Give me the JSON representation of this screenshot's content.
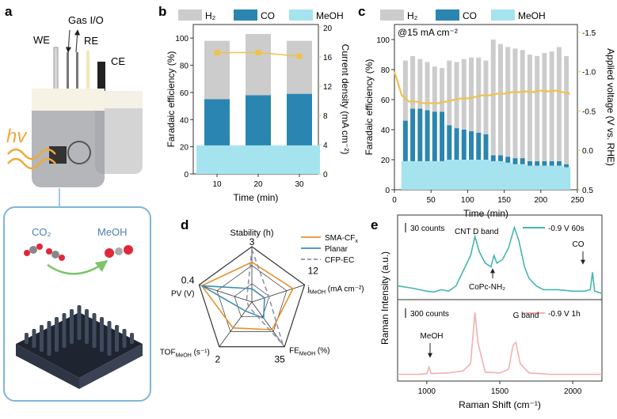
{
  "colors": {
    "h2": "#cccccc",
    "co": "#2a86b0",
    "meoh": "#a5e3ef",
    "current": "#f0c14b",
    "sma": "#e8912a",
    "planar": "#3f8fb5",
    "cfp": "#8f90ad",
    "raman1": "#45b5b0",
    "raman2": "#f3b0b0",
    "boxline": "#7fb6d9"
  },
  "panel_a": {
    "letter": "a",
    "labels": {
      "gas": "Gas I/O",
      "we": "WE",
      "re": "RE",
      "ce": "CE",
      "light": "hv",
      "co2": "CO₂",
      "meoh": "MeOH"
    }
  },
  "chart_data": [
    {
      "panel": "b",
      "type": "bar",
      "categories": [
        "10",
        "20",
        "30"
      ],
      "series": [
        {
          "name": "H₂",
          "values": [
            43,
            45,
            39
          ]
        },
        {
          "name": "CO",
          "values": [
            34,
            37,
            38
          ]
        },
        {
          "name": "MeOH",
          "values": [
            21,
            21,
            21
          ]
        }
      ],
      "current_density": [
        16.6,
        16.6,
        16.1
      ],
      "xlabel": "Time (min)",
      "ylabel": "Faradaic efficiency (%)",
      "y2label": "Current density (mA cm⁻²)",
      "ylim": [
        0,
        100
      ],
      "y2lim": [
        0,
        20
      ],
      "yticks": [
        "0",
        "20",
        "40",
        "60",
        "80",
        "100"
      ],
      "y2ticks": [
        "0",
        "4",
        "8",
        "12",
        "16",
        "20"
      ],
      "xticks": [
        "10",
        "20",
        "30"
      ]
    },
    {
      "panel": "c",
      "type": "bar",
      "annotation": "@15 mA cm⁻²",
      "x": [
        15,
        25,
        35,
        45,
        55,
        65,
        75,
        85,
        95,
        105,
        115,
        125,
        135,
        145,
        155,
        165,
        175,
        185,
        195,
        205,
        215,
        225,
        235
      ],
      "series": [
        {
          "name": "H₂",
          "values": [
            40,
            35,
            33,
            32,
            30,
            29,
            43,
            44,
            47,
            49,
            50,
            49,
            77,
            74,
            73,
            73,
            72,
            71,
            70,
            72,
            73,
            76,
            72
          ]
        },
        {
          "name": "CO",
          "values": [
            27,
            35,
            35,
            34,
            33,
            33,
            23,
            21,
            20,
            19,
            18,
            17,
            4,
            4,
            4,
            4,
            4,
            3,
            3,
            3,
            3,
            3,
            2
          ]
        },
        {
          "name": "MeOH",
          "values": [
            19,
            19,
            19,
            19,
            19,
            19,
            20,
            20,
            20,
            20,
            20,
            20,
            19,
            19,
            18,
            17,
            17,
            16,
            16,
            16,
            16,
            16,
            15
          ]
        }
      ],
      "voltage": [
        [
          0,
          -1.0
        ],
        [
          10,
          -0.7
        ],
        [
          20,
          -0.62
        ],
        [
          30,
          -0.62
        ],
        [
          40,
          -0.6
        ],
        [
          50,
          -0.6
        ],
        [
          60,
          -0.6
        ],
        [
          70,
          -0.62
        ],
        [
          80,
          -0.64
        ],
        [
          90,
          -0.66
        ],
        [
          100,
          -0.66
        ],
        [
          110,
          -0.68
        ],
        [
          120,
          -0.7
        ],
        [
          130,
          -0.7
        ],
        [
          140,
          -0.72
        ],
        [
          150,
          -0.72
        ],
        [
          160,
          -0.74
        ],
        [
          170,
          -0.74
        ],
        [
          180,
          -0.75
        ],
        [
          190,
          -0.74
        ],
        [
          200,
          -0.76
        ],
        [
          210,
          -0.75
        ],
        [
          220,
          -0.76
        ],
        [
          230,
          -0.74
        ],
        [
          240,
          -0.72
        ]
      ],
      "xlabel": "Time (min)",
      "ylabel": "Faradaic efficiency (%)",
      "y2label": "Applied voltage (V vs. RHE)",
      "xlim": [
        0,
        250
      ],
      "ylim": [
        0,
        110
      ],
      "y2lim": [
        0.5,
        -1.6
      ],
      "xticks": [
        "0",
        "50",
        "100",
        "150",
        "200",
        "250"
      ],
      "yticks": [
        "0",
        "20",
        "40",
        "60",
        "80",
        "100"
      ],
      "y2ticks": [
        "0.5",
        "0.0",
        "-0.5",
        "-1.0",
        "-1.5"
      ]
    },
    {
      "panel": "d",
      "type": "radar",
      "axes": [
        {
          "label": "Stability (h)",
          "max": "3"
        },
        {
          "label": "j",
          "sub": "MeOH",
          "unit": " (mA cm⁻²)",
          "max": "12"
        },
        {
          "label": "FE",
          "sub": "MeOH",
          "unit": " (%)",
          "max": "35"
        },
        {
          "label": "TOF",
          "sub": "MeOH",
          "unit": " (s⁻¹)",
          "max": "2"
        },
        {
          "label": "PV (V)",
          "max": "0.4"
        }
      ],
      "series": [
        {
          "name": "SMA-CF",
          "sub": "x",
          "values": [
            0.72,
            0.78,
            0.62,
            0.58,
            0.95
          ]
        },
        {
          "name": "Planar",
          "values": [
            0.24,
            0.24,
            0.36,
            0.2,
            0.95
          ]
        },
        {
          "name": "CFP-EC",
          "values": [
            0.95,
            0.32,
            0.95,
            0.1,
            0.1
          ]
        }
      ]
    },
    {
      "panel": "e",
      "type": "line",
      "xlabel": "Raman Shift (cm⁻¹)",
      "ylabel": "Raman Intensity (a.u.)",
      "xlim": [
        800,
        2200
      ],
      "xticks": [
        "1000",
        "1500",
        "2000"
      ],
      "spectra": [
        {
          "name": "-0.9 V 60s",
          "scale": "30 counts",
          "points": [
            [
              800,
              0.15
            ],
            [
              900,
              0.12
            ],
            [
              1000,
              0.08
            ],
            [
              1050,
              0.07
            ],
            [
              1100,
              0.1
            ],
            [
              1150,
              0.08
            ],
            [
              1200,
              0.15
            ],
            [
              1250,
              0.35
            ],
            [
              1300,
              0.55
            ],
            [
              1330,
              0.8
            ],
            [
              1360,
              0.6
            ],
            [
              1400,
              0.45
            ],
            [
              1440,
              0.4
            ],
            [
              1460,
              0.55
            ],
            [
              1480,
              0.45
            ],
            [
              1520,
              0.5
            ],
            [
              1560,
              0.65
            ],
            [
              1600,
              0.92
            ],
            [
              1630,
              0.75
            ],
            [
              1670,
              0.4
            ],
            [
              1700,
              0.25
            ],
            [
              1750,
              0.15
            ],
            [
              1800,
              0.1
            ],
            [
              1900,
              0.1
            ],
            [
              2000,
              0.08
            ],
            [
              2080,
              0.08
            ],
            [
              2120,
              0.1
            ],
            [
              2135,
              0.33
            ],
            [
              2150,
              0.08
            ],
            [
              2200,
              0.05
            ]
          ],
          "annotations": [
            "CNT D band",
            "CoPc-NH₂",
            "CO"
          ]
        },
        {
          "name": "-0.9 V 1h",
          "scale": "300 counts",
          "points": [
            [
              800,
              0.05
            ],
            [
              950,
              0.05
            ],
            [
              1000,
              0.06
            ],
            [
              1015,
              0.15
            ],
            [
              1030,
              0.06
            ],
            [
              1150,
              0.07
            ],
            [
              1250,
              0.1
            ],
            [
              1300,
              0.2
            ],
            [
              1330,
              0.92
            ],
            [
              1350,
              0.5
            ],
            [
              1400,
              0.08
            ],
            [
              1500,
              0.07
            ],
            [
              1560,
              0.12
            ],
            [
              1590,
              0.45
            ],
            [
              1610,
              0.5
            ],
            [
              1640,
              0.2
            ],
            [
              1700,
              0.07
            ],
            [
              1850,
              0.05
            ],
            [
              2000,
              0.05
            ],
            [
              2200,
              0.05
            ]
          ],
          "annotations": [
            "MeOH",
            "G band"
          ]
        }
      ]
    }
  ]
}
